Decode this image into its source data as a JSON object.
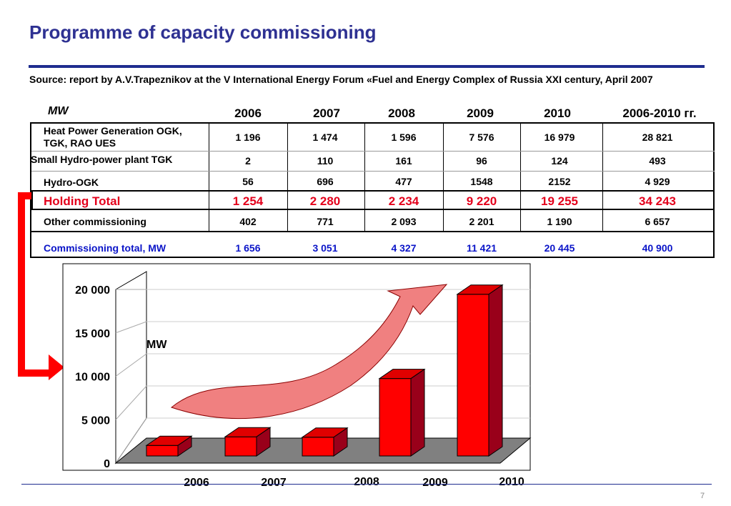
{
  "title": "Programme of capacity commissioning",
  "source": "Source: report by A.V.Trapeznikov at the V International Energy Forum «Fuel and Energy Complex of Russia XXI century, April 2007",
  "table": {
    "unit_label": "MW",
    "columns": [
      "2006",
      "2007",
      "2008",
      "2009",
      "2010",
      "2006-2010 гг."
    ],
    "rows": [
      {
        "label": "Heat Power Generation OGK, TGK, RAO UES",
        "values": [
          "1 196",
          "1 474",
          "1 596",
          "7 576",
          "16 979",
          "28 821"
        ]
      },
      {
        "label": "Small Hydro-power plant TGK",
        "values": [
          "2",
          "110",
          "161",
          "96",
          "124",
          "493"
        ]
      },
      {
        "label": "Hydro-OGK",
        "values": [
          "56",
          "696",
          "477",
          "1548",
          "2152",
          "4 929"
        ]
      },
      {
        "label": "Holding Total",
        "values": [
          "1 254",
          "2 280",
          "2 234",
          "9 220",
          "19 255",
          "34 243"
        ]
      },
      {
        "label": "Other commissioning",
        "values": [
          "402",
          "771",
          "2 093",
          "2 201",
          "1 190",
          "6 657"
        ]
      },
      {
        "label": "Commissioning total, MW",
        "values": [
          "1 656",
          "3 051",
          "4 327",
          "11 421",
          "20 445",
          "40 900"
        ]
      }
    ]
  },
  "chart_data": {
    "type": "bar",
    "categories": [
      "2006",
      "2007",
      "2008",
      "2009",
      "2010"
    ],
    "values": [
      1254,
      2280,
      2234,
      9220,
      19255
    ],
    "ylabel": "MW",
    "ylim": [
      0,
      20000
    ],
    "yticks": [
      "0",
      "5 000",
      "10 000",
      "15 000",
      "20 000"
    ],
    "grid": true,
    "bar_color": "#ff0000"
  },
  "page_number": "7",
  "colors": {
    "title": "#2e3192",
    "red": "#e3001b",
    "blue": "#0a14c8"
  }
}
